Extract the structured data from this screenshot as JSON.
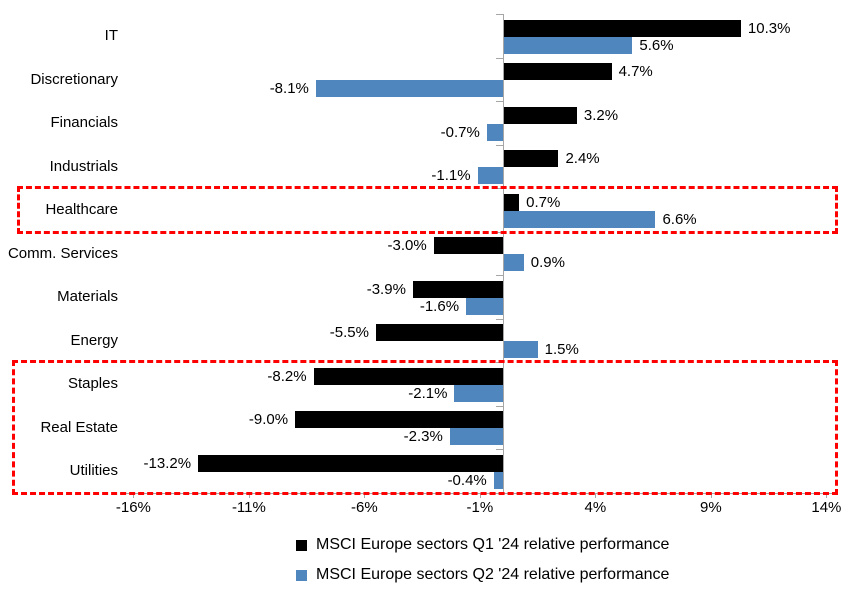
{
  "chart_data": {
    "type": "bar",
    "orientation": "horizontal",
    "title": "",
    "categories": [
      "IT",
      "Discretionary",
      "Financials",
      "Industrials",
      "Healthcare",
      "Comm. Services",
      "Materials",
      "Energy",
      "Staples",
      "Real Estate",
      "Utilities"
    ],
    "series": [
      {
        "name": "MSCI Europe sectors Q1 '24 relative performance",
        "color": "#000000",
        "values": [
          10.3,
          4.7,
          3.2,
          2.4,
          0.7,
          -3.0,
          -3.9,
          -5.5,
          -8.2,
          -9.0,
          -13.2
        ],
        "labels": [
          "10.3%",
          "4.7%",
          "3.2%",
          "2.4%",
          "0.7%",
          "-3.0%",
          "-3.9%",
          "-5.5%",
          "-8.2%",
          "-9.0%",
          "-13.2%"
        ]
      },
      {
        "name": "MSCI Europe sectors Q2 '24 relative performance",
        "color": "#4f86bd",
        "values": [
          5.6,
          -8.1,
          -0.7,
          -1.1,
          6.6,
          0.9,
          -1.6,
          1.5,
          -2.1,
          -2.3,
          -0.4
        ],
        "labels": [
          "5.6%",
          "-8.1%",
          "-0.7%",
          "-1.1%",
          "6.6%",
          "0.9%",
          "-1.6%",
          "1.5%",
          "-2.1%",
          "-2.3%",
          "-0.4%"
        ]
      }
    ],
    "x_ticks": [
      {
        "value": -16,
        "label": "-16%"
      },
      {
        "value": -11,
        "label": "-11%"
      },
      {
        "value": -6,
        "label": "-6%"
      },
      {
        "value": -1,
        "label": "-1%"
      },
      {
        "value": 4,
        "label": "4%"
      },
      {
        "value": 9,
        "label": "9%"
      },
      {
        "value": 14,
        "label": "14%"
      }
    ],
    "xlim": [
      -16.6,
      14.5
    ],
    "grid": false,
    "data_labels": true,
    "legend_position": "bottom",
    "highlights": [
      {
        "name": "healthcare-highlight",
        "from_category": "Healthcare",
        "to_category": "Healthcare",
        "color": "#ff0000"
      },
      {
        "name": "defensives-highlight",
        "from_category": "Staples",
        "to_category": "Utilities",
        "color": "#ff0000"
      }
    ],
    "axis_color": "#a6a6a6"
  }
}
